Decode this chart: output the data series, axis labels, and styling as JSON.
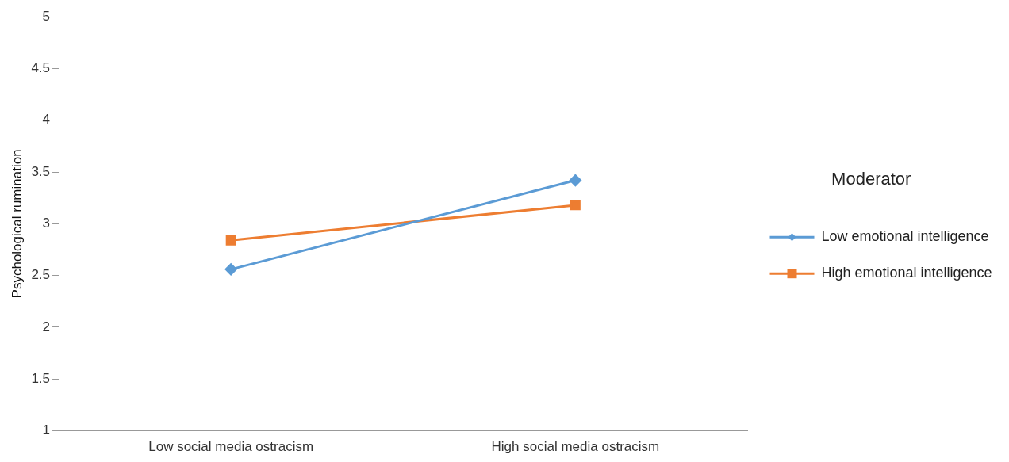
{
  "chart_data": {
    "type": "line",
    "ylabel": "Psychological rumination",
    "legend_title": "Moderator",
    "categories": [
      "Low social media ostracism",
      "High social media ostracism"
    ],
    "series": [
      {
        "name": "Low emotional intelligence",
        "color": "#5b9bd5",
        "values": [
          2.56,
          3.42
        ],
        "marker": "diamond"
      },
      {
        "name": "High emotional intelligence",
        "color": "#ed7d31",
        "values": [
          2.84,
          3.18
        ],
        "marker": "square"
      }
    ],
    "ylim": [
      1,
      5
    ],
    "yticks": [
      1,
      1.5,
      2,
      2.5,
      3,
      3.5,
      4,
      4.5,
      5
    ],
    "grid": false,
    "legend": "right",
    "line_style": "solid"
  }
}
